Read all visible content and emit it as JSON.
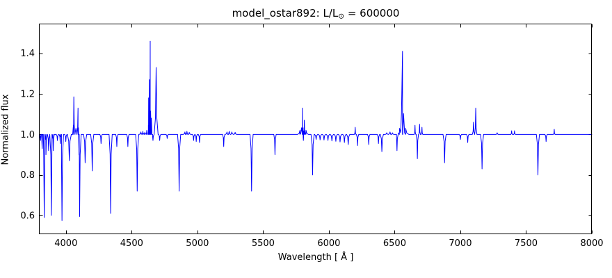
{
  "figure": {
    "title_main": "model_ostar892: L/L",
    "title_sub": "⊙",
    "title_tail": " = 600000"
  },
  "chart_data": {
    "type": "line",
    "title": "model_ostar892: L/L⊙ = 600000",
    "xlabel": "Wavelength [ Å ]",
    "ylabel": "Normalized flux",
    "xlim": [
      3800,
      8000
    ],
    "ylim": [
      0.511,
      1.543
    ],
    "xticks": [
      4000,
      4500,
      5000,
      5500,
      6000,
      6500,
      7000,
      7500,
      8000
    ],
    "yticks": [
      0.6,
      0.8,
      1.0,
      1.2,
      1.4
    ],
    "grid": false,
    "legend": null,
    "line_color": "#0000ff",
    "axes_color": "#000000",
    "background": "#ffffff",
    "continuum_flux": 1.0,
    "left_edge_flux": 0.985,
    "features_format": [
      "wavelength_angstrom",
      "extreme_flux",
      "half_width_angstrom"
    ],
    "features": [
      [
        3807,
        0.97,
        3
      ],
      [
        3819,
        0.93,
        3
      ],
      [
        3835,
        0.59,
        4
      ],
      [
        3848,
        0.9,
        3
      ],
      [
        3868,
        0.92,
        3
      ],
      [
        3889,
        0.6,
        4
      ],
      [
        3903,
        0.92,
        3
      ],
      [
        3935,
        0.97,
        3
      ],
      [
        3957,
        0.955,
        3
      ],
      [
        3970,
        0.575,
        4
      ],
      [
        3999,
        0.965,
        3
      ],
      [
        4026,
        0.87,
        5
      ],
      [
        4060,
        1.185,
        3
      ],
      [
        4076,
        1.03,
        6
      ],
      [
        4092,
        1.13,
        3
      ],
      [
        4104,
        0.595,
        4
      ],
      [
        4146,
        0.86,
        4
      ],
      [
        4200,
        0.82,
        4
      ],
      [
        4267,
        0.955,
        3
      ],
      [
        4340,
        0.61,
        4
      ],
      [
        4387,
        0.94,
        3
      ],
      [
        4471,
        0.94,
        3
      ],
      [
        4542,
        0.72,
        4
      ],
      [
        4570,
        1.012,
        4
      ],
      [
        4585,
        1.015,
        4
      ],
      [
        4600,
        1.01,
        4
      ],
      [
        4615,
        1.02,
        4
      ],
      [
        4629,
        1.18,
        2
      ],
      [
        4634,
        1.27,
        2
      ],
      [
        4638,
        1.1,
        2
      ],
      [
        4641,
        1.46,
        3
      ],
      [
        4650,
        1.08,
        3
      ],
      [
        4662,
        0.97,
        3
      ],
      [
        4686,
        1.33,
        5
      ],
      [
        4713,
        0.97,
        3
      ],
      [
        4770,
        0.98,
        3
      ],
      [
        4861,
        0.72,
        4
      ],
      [
        4905,
        1.012,
        4
      ],
      [
        4920,
        1.015,
        4
      ],
      [
        4938,
        1.01,
        4
      ],
      [
        4971,
        0.97,
        3
      ],
      [
        4991,
        0.965,
        3
      ],
      [
        5016,
        0.96,
        3
      ],
      [
        5200,
        0.94,
        3
      ],
      [
        5225,
        1.012,
        4
      ],
      [
        5242,
        1.015,
        4
      ],
      [
        5262,
        1.012,
        4
      ],
      [
        5287,
        1.01,
        4
      ],
      [
        5412,
        0.72,
        4
      ],
      [
        5590,
        0.9,
        3
      ],
      [
        5780,
        1.02,
        6
      ],
      [
        5798,
        1.13,
        6
      ],
      [
        5806,
        0.97,
        2
      ],
      [
        5813,
        1.07,
        4
      ],
      [
        5826,
        1.02,
        6
      ],
      [
        5876,
        0.8,
        4
      ],
      [
        5903,
        0.975,
        4
      ],
      [
        5933,
        0.973,
        4
      ],
      [
        5963,
        0.972,
        4
      ],
      [
        5993,
        0.97,
        4
      ],
      [
        6023,
        0.968,
        4
      ],
      [
        6053,
        0.966,
        4
      ],
      [
        6085,
        0.963,
        4
      ],
      [
        6118,
        0.96,
        4
      ],
      [
        6147,
        0.95,
        4
      ],
      [
        6200,
        1.035,
        2
      ],
      [
        6218,
        0.945,
        3
      ],
      [
        6303,
        0.95,
        3
      ],
      [
        6377,
        0.955,
        3
      ],
      [
        6403,
        0.915,
        4
      ],
      [
        6440,
        1.008,
        4
      ],
      [
        6465,
        1.012,
        4
      ],
      [
        6483,
        1.008,
        4
      ],
      [
        6518,
        0.92,
        3
      ],
      [
        6538,
        1.03,
        8
      ],
      [
        6560,
        1.41,
        8
      ],
      [
        6584,
        1.03,
        8
      ],
      [
        6655,
        1.045,
        2
      ],
      [
        6673,
        0.88,
        3
      ],
      [
        6690,
        1.05,
        2
      ],
      [
        6708,
        1.035,
        2
      ],
      [
        6880,
        0.86,
        4
      ],
      [
        7000,
        0.975,
        3
      ],
      [
        7056,
        0.96,
        3
      ],
      [
        7100,
        1.06,
        3
      ],
      [
        7117,
        1.13,
        3
      ],
      [
        7165,
        0.83,
        4
      ],
      [
        7280,
        1.008,
        3
      ],
      [
        7390,
        1.018,
        2
      ],
      [
        7412,
        1.018,
        2
      ],
      [
        7590,
        0.8,
        4
      ],
      [
        7652,
        0.965,
        3
      ],
      [
        7714,
        1.025,
        2
      ]
    ]
  }
}
